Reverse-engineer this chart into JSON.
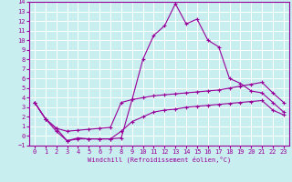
{
  "xlabel": "Windchill (Refroidissement éolien,°C)",
  "bg_color": "#c8eef0",
  "line_color": "#990099",
  "grid_color": "#ffffff",
  "xlim": [
    -0.5,
    23.5
  ],
  "ylim": [
    -1,
    14
  ],
  "xticks": [
    0,
    1,
    2,
    3,
    4,
    5,
    6,
    7,
    8,
    9,
    10,
    11,
    12,
    13,
    14,
    15,
    16,
    17,
    18,
    19,
    20,
    21,
    22,
    23
  ],
  "yticks": [
    -1,
    0,
    1,
    2,
    3,
    4,
    5,
    6,
    7,
    8,
    9,
    10,
    11,
    12,
    13,
    14
  ],
  "series1_x": [
    0,
    1,
    2,
    3,
    4,
    5,
    6,
    7,
    8,
    9,
    10,
    11,
    12,
    13,
    14,
    15,
    16,
    17,
    18,
    19,
    20,
    21,
    22,
    23
  ],
  "series1_y": [
    3.5,
    1.8,
    0.8,
    -0.5,
    -0.2,
    -0.3,
    -0.3,
    -0.3,
    -0.2,
    3.8,
    8.0,
    10.5,
    11.5,
    13.8,
    11.7,
    12.2,
    10.0,
    9.3,
    6.0,
    5.5,
    4.7,
    4.5,
    3.5,
    2.5
  ],
  "series2_x": [
    0,
    1,
    2,
    3,
    4,
    5,
    6,
    7,
    8,
    9,
    10,
    11,
    12,
    13,
    14,
    15,
    16,
    17,
    18,
    19,
    20,
    21,
    22,
    23
  ],
  "series2_y": [
    3.5,
    1.8,
    0.8,
    0.5,
    0.6,
    0.7,
    0.8,
    0.9,
    3.5,
    3.8,
    4.0,
    4.2,
    4.3,
    4.4,
    4.5,
    4.6,
    4.7,
    4.8,
    5.0,
    5.2,
    5.4,
    5.6,
    4.5,
    3.5
  ],
  "series3_x": [
    0,
    1,
    2,
    3,
    4,
    5,
    6,
    7,
    8,
    9,
    10,
    11,
    12,
    13,
    14,
    15,
    16,
    17,
    18,
    19,
    20,
    21,
    22,
    23
  ],
  "series3_y": [
    3.5,
    1.8,
    0.5,
    -0.5,
    -0.3,
    -0.3,
    -0.3,
    -0.3,
    0.5,
    1.5,
    2.0,
    2.5,
    2.7,
    2.8,
    3.0,
    3.1,
    3.2,
    3.3,
    3.4,
    3.5,
    3.6,
    3.7,
    2.7,
    2.2
  ]
}
